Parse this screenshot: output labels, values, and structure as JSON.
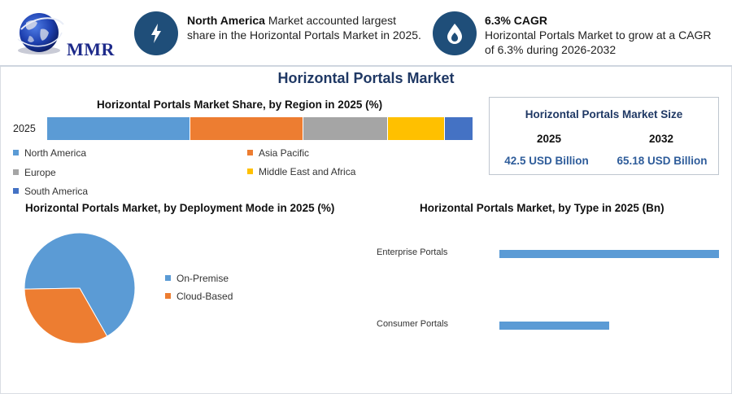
{
  "logo": {
    "text": "MMR"
  },
  "callouts": [
    {
      "icon": "lightning-icon",
      "bold": "North America",
      "line1_rest": " Market accounted largest",
      "line2": "share in the Horizontal Portals Market in 2025."
    },
    {
      "icon": "flame-drop-icon",
      "bold": "6.3% CAGR",
      "line1_rest": "",
      "line2": "Horizontal Portals Market to grow at a CAGR",
      "line3": "of 6.3% during 2026-2032"
    }
  ],
  "main_title": "Horizontal Portals Market",
  "size_box": {
    "title": "Horizontal Portals Market Size",
    "years": [
      "2025",
      "2032"
    ],
    "values": [
      "42.5 USD Billion",
      "65.18 USD Billion"
    ]
  },
  "colors": {
    "north_america": "#5b9bd5",
    "asia_pacific": "#ed7d31",
    "europe": "#a5a5a5",
    "middle_east_africa": "#ffc000",
    "south_america": "#4472c4",
    "navy": "#1f4e79",
    "title": "#1f3864"
  },
  "chart_data": [
    {
      "type": "bar",
      "title": "Horizontal Portals Market Share, by Region in 2025 (%)",
      "orientation": "horizontal-stacked",
      "categories": [
        "2025"
      ],
      "series": [
        {
          "name": "North America",
          "values": [
            33.5
          ],
          "color": "#5b9bd5"
        },
        {
          "name": "Asia Pacific",
          "values": [
            26.7
          ],
          "color": "#ed7d31"
        },
        {
          "name": "Europe",
          "values": [
            19.8
          ],
          "color": "#a5a5a5"
        },
        {
          "name": "Middle East and Africa",
          "values": [
            13.4
          ],
          "color": "#ffc000"
        },
        {
          "name": "South America",
          "values": [
            6.6
          ],
          "color": "#4472c4"
        }
      ],
      "xlim": [
        0,
        100
      ],
      "legend": "bottom"
    },
    {
      "type": "pie",
      "title": "Horizontal Portals Market, by Deployment Mode in 2025 (%)",
      "series": [
        {
          "name": "On-Premise",
          "values": [
            67
          ],
          "color": "#5b9bd5"
        },
        {
          "name": "Cloud-Based",
          "values": [
            33
          ],
          "color": "#ed7d31"
        }
      ],
      "legend": "right"
    },
    {
      "type": "bar",
      "title": "Horizontal Portals Market, by Type in 2025 (Bn)",
      "orientation": "horizontal",
      "categories": [
        "Enterprise Portals",
        "Consumer Portals"
      ],
      "values": [
        27.5,
        13.8
      ],
      "color": "#5b9bd5",
      "xlim": [
        0,
        27.5
      ],
      "legend": "none"
    }
  ]
}
